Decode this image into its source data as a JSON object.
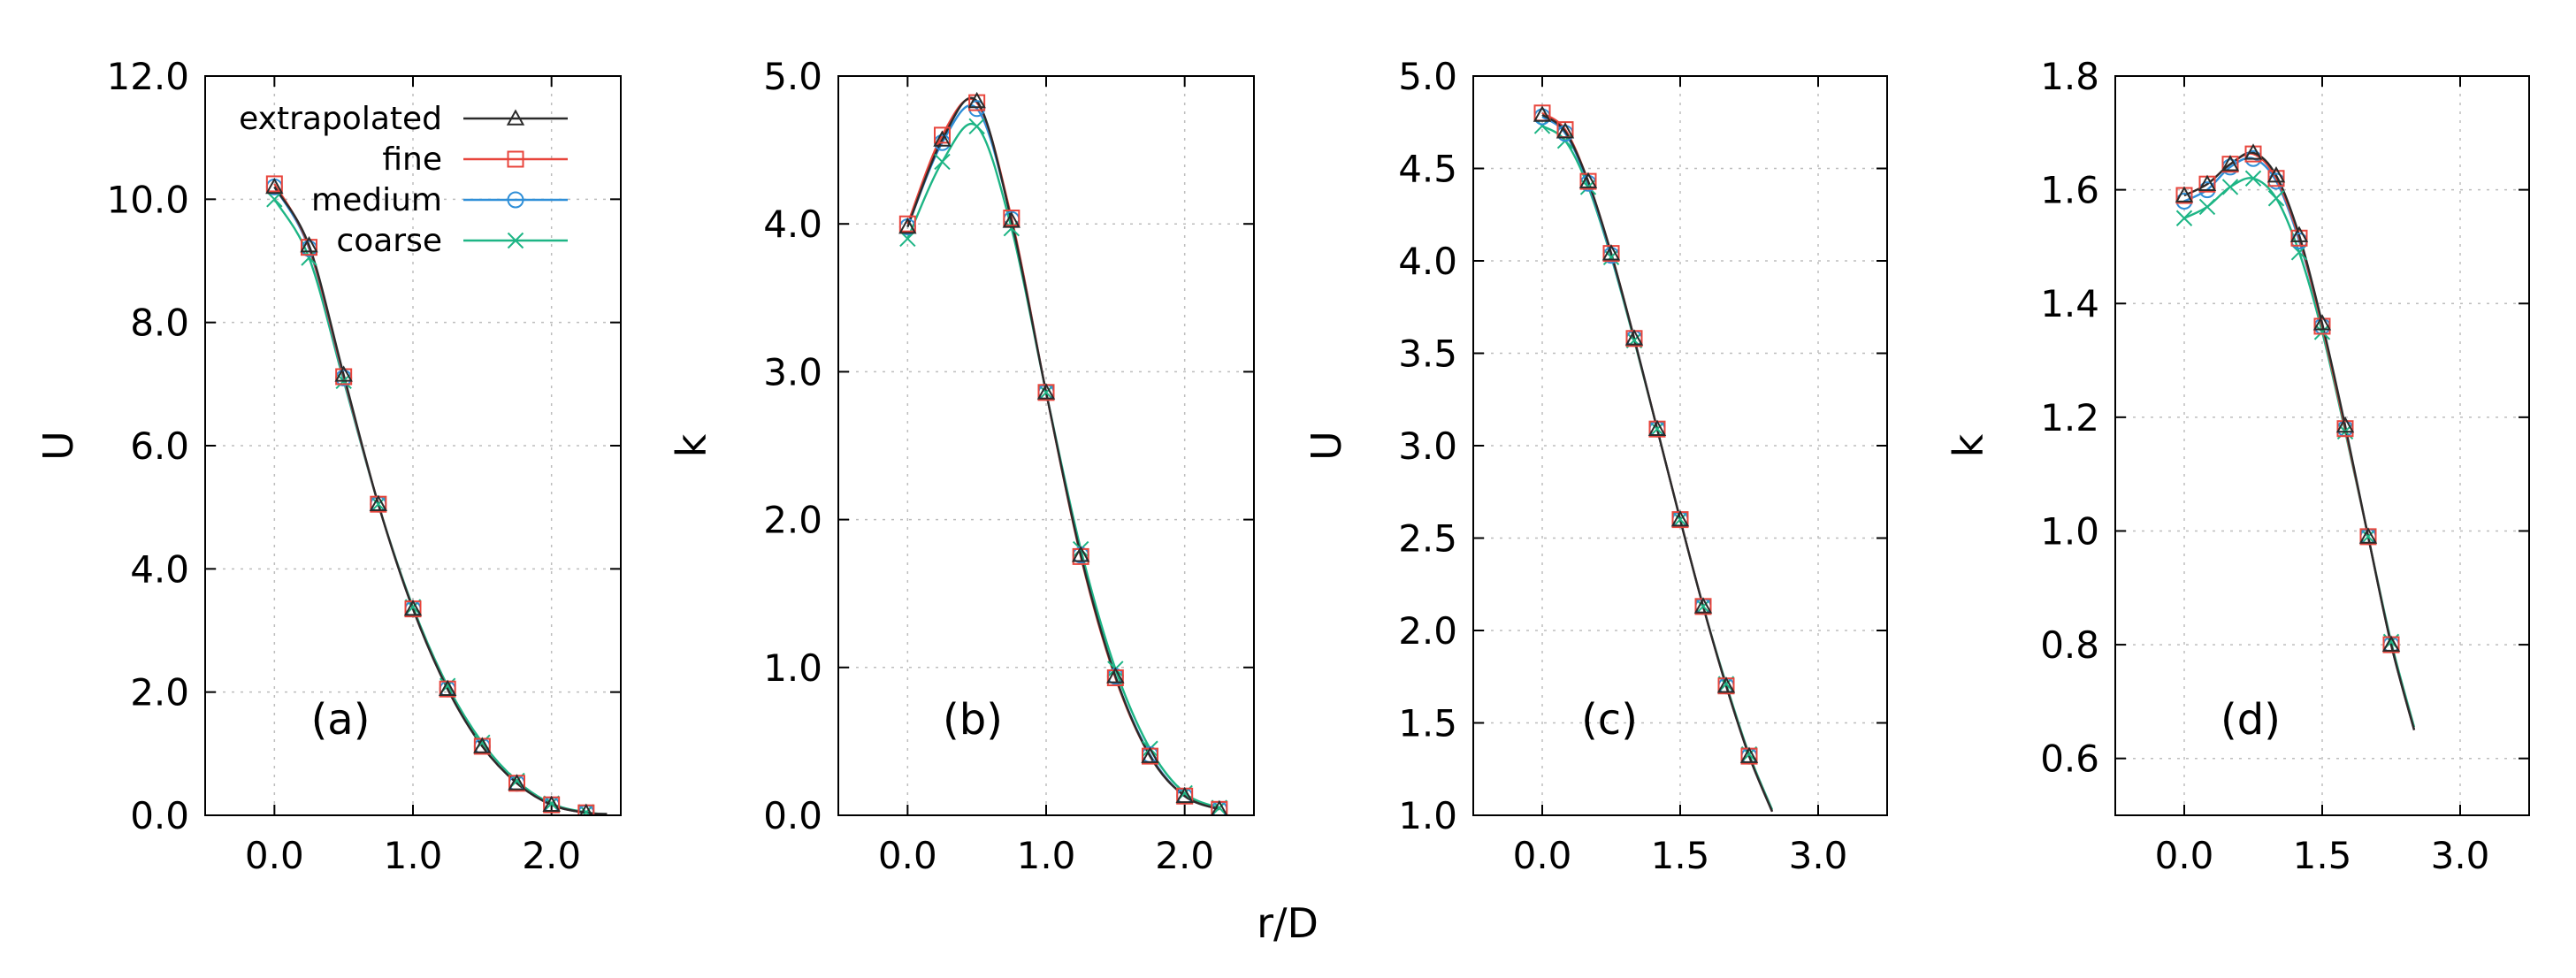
{
  "figure": {
    "shared_xlabel": "r/D"
  },
  "legend": {
    "entries": [
      {
        "name": "extrapolated",
        "color": "#2b2b2b",
        "marker": "triangle"
      },
      {
        "name": "fine",
        "color": "#e8453c",
        "marker": "square"
      },
      {
        "name": "medium",
        "color": "#2f8fd8",
        "marker": "circle"
      },
      {
        "name": "coarse",
        "color": "#1db585",
        "marker": "x"
      }
    ]
  },
  "chart_data": [
    {
      "type": "line",
      "panel": "(a)",
      "xlabel": "",
      "ylabel": "U",
      "xlim": [
        -0.5,
        2.5
      ],
      "ylim": [
        0,
        12
      ],
      "xticks": [
        0.0,
        1.0,
        2.0
      ],
      "xtick_labels": [
        "0.0",
        "1.0",
        "2.0"
      ],
      "yticks": [
        0,
        2,
        4,
        6,
        8,
        10,
        12
      ],
      "ytick_labels": [
        "0.0",
        "2.0",
        "4.0",
        "6.0",
        "8.0",
        "10.0",
        "12.0"
      ],
      "legend_position": "top-left",
      "x": [
        0.0,
        0.25,
        0.5,
        0.75,
        1.0,
        1.25,
        1.5,
        1.75,
        2.0,
        2.25,
        2.4
      ],
      "series": [
        {
          "name": "extrapolated",
          "values": [
            10.2,
            9.25,
            7.15,
            5.05,
            3.35,
            2.05,
            1.12,
            0.52,
            0.17,
            0.04,
            0.02
          ]
        },
        {
          "name": "fine",
          "values": [
            10.25,
            9.22,
            7.12,
            5.05,
            3.35,
            2.05,
            1.12,
            0.52,
            0.17,
            0.04,
            0.02
          ]
        },
        {
          "name": "medium",
          "values": [
            10.2,
            9.2,
            7.1,
            5.05,
            3.35,
            2.05,
            1.12,
            0.52,
            0.17,
            0.04,
            0.02
          ]
        },
        {
          "name": "coarse",
          "values": [
            10.0,
            9.05,
            7.05,
            5.05,
            3.38,
            2.1,
            1.18,
            0.56,
            0.19,
            0.05,
            0.02
          ]
        }
      ]
    },
    {
      "type": "line",
      "panel": "(b)",
      "xlabel": "",
      "ylabel": "k",
      "xlim": [
        -0.5,
        2.5
      ],
      "ylim": [
        0,
        5
      ],
      "xticks": [
        0.0,
        1.0,
        2.0
      ],
      "xtick_labels": [
        "0.0",
        "1.0",
        "2.0"
      ],
      "yticks": [
        0,
        1,
        2,
        3,
        4,
        5
      ],
      "ytick_labels": [
        "0.0",
        "1.0",
        "2.0",
        "3.0",
        "4.0",
        "5.0"
      ],
      "x": [
        0.0,
        0.25,
        0.5,
        0.75,
        1.0,
        1.25,
        1.5,
        1.75,
        2.0,
        2.25
      ],
      "series": [
        {
          "name": "extrapolated",
          "values": [
            3.98,
            4.57,
            4.83,
            4.02,
            2.86,
            1.76,
            0.94,
            0.4,
            0.13,
            0.04
          ]
        },
        {
          "name": "fine",
          "values": [
            4.0,
            4.6,
            4.82,
            4.04,
            2.86,
            1.75,
            0.93,
            0.4,
            0.13,
            0.04
          ]
        },
        {
          "name": "medium",
          "values": [
            3.98,
            4.55,
            4.78,
            4.03,
            2.86,
            1.76,
            0.94,
            0.41,
            0.13,
            0.04
          ]
        },
        {
          "name": "coarse",
          "values": [
            3.9,
            4.42,
            4.66,
            3.97,
            2.86,
            1.8,
            0.99,
            0.45,
            0.15,
            0.05
          ]
        }
      ]
    },
    {
      "type": "line",
      "panel": "(c)",
      "xlabel": "",
      "ylabel": "U",
      "xlim": [
        -0.75,
        3.75
      ],
      "ylim": [
        1.0,
        5.0
      ],
      "xticks": [
        0.0,
        1.5,
        3.0
      ],
      "xtick_labels": [
        "0.0",
        "1.5",
        "3.0"
      ],
      "yticks": [
        1.0,
        1.5,
        2.0,
        2.5,
        3.0,
        3.5,
        4.0,
        4.5,
        5.0
      ],
      "ytick_labels": [
        "1.0",
        "1.5",
        "2.0",
        "2.5",
        "3.0",
        "3.5",
        "4.0",
        "4.5",
        "5.0"
      ],
      "x": [
        0.0,
        0.25,
        0.5,
        0.75,
        1.0,
        1.25,
        1.5,
        1.75,
        2.0,
        2.25,
        2.5
      ],
      "series": [
        {
          "name": "extrapolated",
          "values": [
            4.79,
            4.7,
            4.43,
            4.04,
            3.58,
            3.09,
            2.6,
            2.13,
            1.7,
            1.32,
            1.02
          ]
        },
        {
          "name": "fine",
          "values": [
            4.8,
            4.71,
            4.43,
            4.04,
            3.58,
            3.09,
            2.6,
            2.13,
            1.7,
            1.32,
            1.02
          ]
        },
        {
          "name": "medium",
          "values": [
            4.78,
            4.69,
            4.42,
            4.03,
            3.58,
            3.09,
            2.6,
            2.13,
            1.7,
            1.32,
            1.02
          ]
        },
        {
          "name": "coarse",
          "values": [
            4.73,
            4.65,
            4.4,
            4.02,
            3.57,
            3.09,
            2.6,
            2.13,
            1.71,
            1.33,
            1.03
          ]
        }
      ]
    },
    {
      "type": "line",
      "panel": "(d)",
      "xlabel": "",
      "ylabel": "k",
      "xlim": [
        -0.75,
        3.75
      ],
      "ylim": [
        0.5,
        1.8
      ],
      "xticks": [
        0.0,
        1.5,
        3.0
      ],
      "xtick_labels": [
        "0.0",
        "1.5",
        "3.0"
      ],
      "yticks": [
        0.6,
        0.8,
        1.0,
        1.2,
        1.4,
        1.6,
        1.8
      ],
      "ytick_labels": [
        "0.6",
        "0.8",
        "1.0",
        "1.2",
        "1.4",
        "1.6",
        "1.8"
      ],
      "x": [
        0.0,
        0.25,
        0.5,
        0.75,
        1.0,
        1.25,
        1.5,
        1.75,
        2.0,
        2.25,
        2.5
      ],
      "series": [
        {
          "name": "extrapolated",
          "values": [
            1.59,
            1.61,
            1.645,
            1.665,
            1.625,
            1.52,
            1.365,
            1.185,
            0.99,
            0.8,
            0.65
          ]
        },
        {
          "name": "fine",
          "values": [
            1.59,
            1.61,
            1.645,
            1.663,
            1.62,
            1.515,
            1.36,
            1.18,
            0.99,
            0.8,
            0.65
          ]
        },
        {
          "name": "medium",
          "values": [
            1.58,
            1.6,
            1.64,
            1.655,
            1.615,
            1.51,
            1.36,
            1.18,
            0.99,
            0.8,
            0.65
          ]
        },
        {
          "name": "coarse",
          "values": [
            1.55,
            1.57,
            1.605,
            1.62,
            1.585,
            1.49,
            1.35,
            1.175,
            0.99,
            0.805,
            0.655
          ]
        }
      ]
    }
  ]
}
